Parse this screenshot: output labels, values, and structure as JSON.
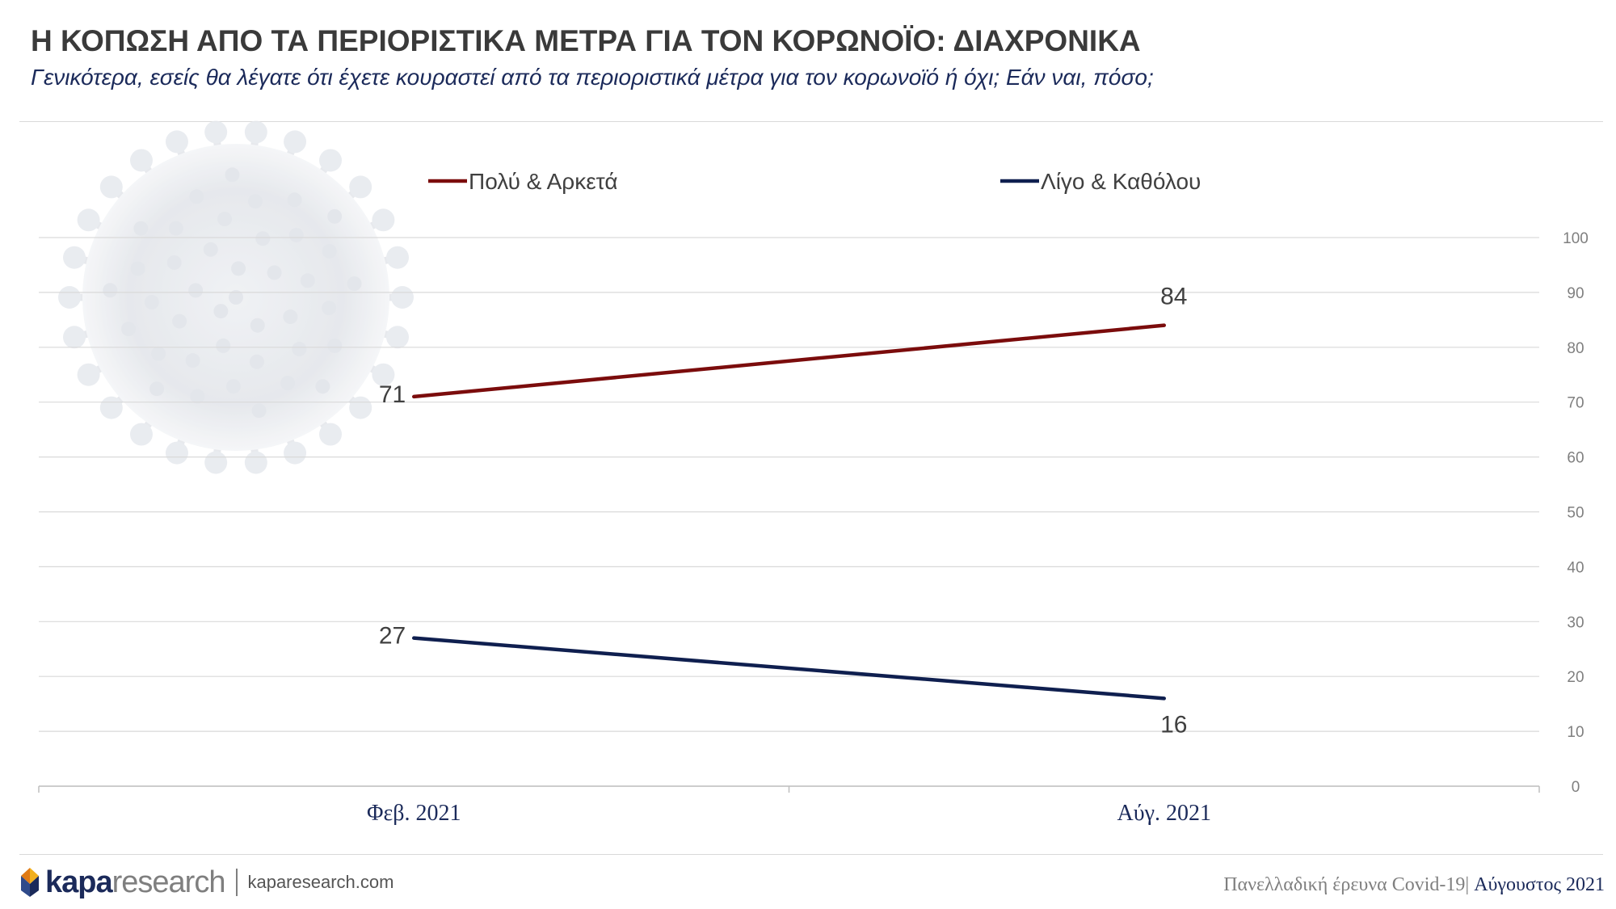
{
  "title": "Η ΚΟΠΩΣΗ ΑΠΟ ΤΑ ΠΕΡΙΟΡΙΣΤΙΚΑ ΜΕΤΡΑ ΓΙΑ ΤΟΝ ΚΟΡΩΝΟΪΟ: ΔΙΑΧΡΟΝΙΚΑ",
  "subtitle": "Γενικότερα, εσείς θα λέγατε ότι έχετε κουραστεί από τα περιοριστικά μέτρα για τον κορωνοϊό ή όχι; Εάν ναι, πόσο;",
  "chart_data": {
    "type": "line",
    "categories": [
      "Φεβ. 2021",
      "Αύγ. 2021"
    ],
    "series": [
      {
        "name": "Πολύ & Αρκετά",
        "values": [
          71,
          84
        ],
        "color": "#7b0c0c"
      },
      {
        "name": "Λίγο & Καθόλου",
        "values": [
          27,
          16
        ],
        "color": "#0f1f4f"
      }
    ],
    "ylim": [
      0,
      100
    ],
    "yticks": [
      0,
      10,
      20,
      30,
      40,
      50,
      60,
      70,
      80,
      90,
      100
    ],
    "y_axis_side": "right",
    "grid": true,
    "legend_position": "top",
    "data_labels": true
  },
  "footer": {
    "logo_kapa": "kapa",
    "logo_research": "research",
    "website": "kaparesearch.com",
    "survey": "Πανελλαδική έρευνα Covid-19|",
    "date": " Αύγουστος 2021"
  },
  "colors": {
    "title": "#3a3a3a",
    "subtitle": "#1b2a5a",
    "grid": "#d9d9d9",
    "tick": "#7f7f7f",
    "category_label": "#1b2a5a",
    "data_label": "#404040"
  }
}
